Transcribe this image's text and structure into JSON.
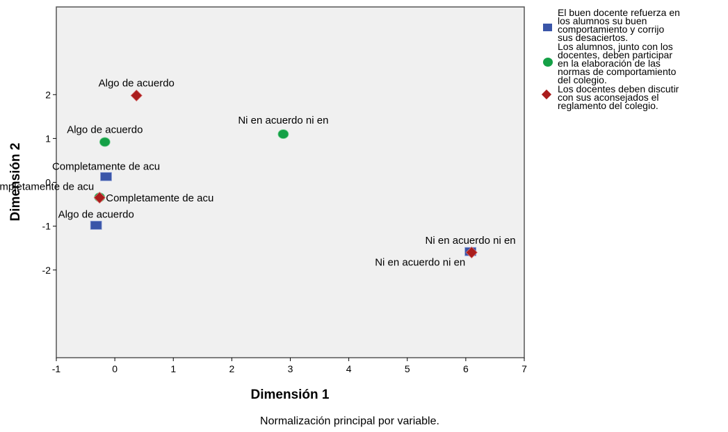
{
  "chart_data": {
    "type": "scatter",
    "xlabel": "Dimensión 1",
    "ylabel": "Dimensión 2",
    "xlim": [
      -1,
      7
    ],
    "ylim": [
      -4,
      4
    ],
    "x_ticks": [
      -1,
      0,
      1,
      2,
      3,
      4,
      5,
      6,
      7
    ],
    "y_ticks": [
      2,
      1,
      0,
      -1,
      -2
    ],
    "note": "Normalización principal por variable.",
    "legend_position": "right",
    "grid": false,
    "series": [
      {
        "name": "El buen docente refuerza en los alumnos su buen comportamiento y corrijo sus desaciertos.",
        "marker": "square",
        "color": "#3a55a8",
        "legend_lines": [
          "El buen docente refuerza en",
          "los alumnos su buen",
          "comportamiento y corrijo",
          "sus desaciertos."
        ],
        "points": [
          {
            "x": -0.15,
            "y": 0.13,
            "label": "Completamente de acu"
          },
          {
            "x": -0.32,
            "y": -0.98,
            "label": "Algo de acuerdo"
          },
          {
            "x": 6.08,
            "y": -1.58,
            "label": "Ni en acuerdo ni en"
          }
        ]
      },
      {
        "name": "Los alumnos, junto con los docentes, deben participar en la elaboración de las normas de comportamiento del colegio.",
        "marker": "circle",
        "color": "#14a046",
        "legend_lines": [
          "Los alumnos, junto con los",
          "docentes, deben participar",
          "en la elaboración de las",
          "normas de comportamiento",
          "del colegio."
        ],
        "points": [
          {
            "x": -0.17,
            "y": 0.92,
            "label": "Algo de acuerdo"
          },
          {
            "x": 2.88,
            "y": 1.1,
            "label": "Ni en acuerdo ni en"
          },
          {
            "x": -0.26,
            "y": -0.34,
            "label": "Completamente de acu"
          }
        ]
      },
      {
        "name": "Los docentes deben discutir con sus aconsejados el reglamento del colegio.",
        "marker": "diamond",
        "color": "#aa1c1c",
        "legend_lines": [
          "Los docentes deben discutir",
          "con sus aconsejados el",
          "reglamento del colegio."
        ],
        "points": [
          {
            "x": 0.37,
            "y": 1.98,
            "label": "Algo de acuerdo"
          },
          {
            "x": -0.26,
            "y": -0.35,
            "label": "Completamente de acu"
          },
          {
            "x": 6.1,
            "y": -1.6,
            "label": "Ni en acuerdo ni en"
          }
        ]
      }
    ]
  }
}
